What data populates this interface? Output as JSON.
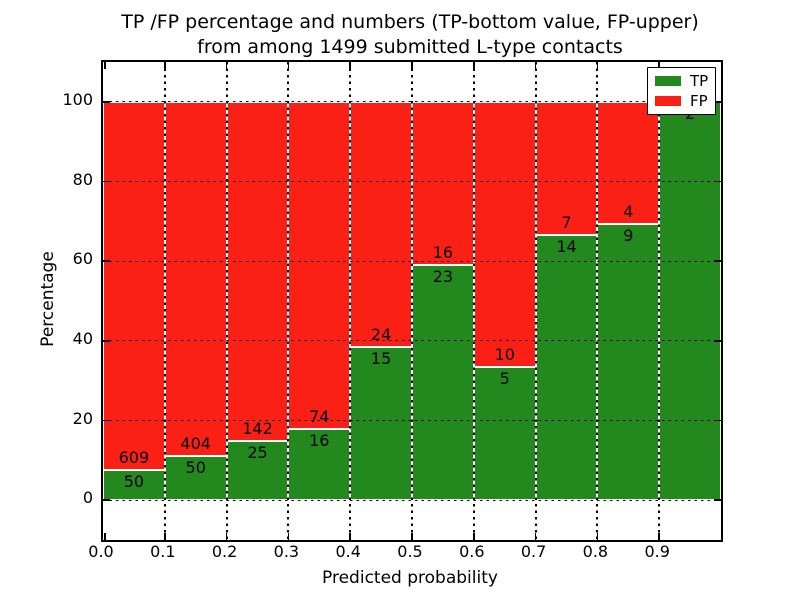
{
  "chart_data": {
    "type": "bar",
    "stacked": true,
    "title_line1": "TP /FP percentage and numbers (TP-bottom value, FP-upper)",
    "title_line2": "from among 1499 submitted L-type contacts",
    "xlabel": "Predicted probability",
    "ylabel": "Percentage",
    "total_contacts": 1499,
    "xlim": [
      0.0,
      1.0
    ],
    "ylim": [
      -10,
      110
    ],
    "bar_width": 0.1,
    "grid": true,
    "x_ticks": [
      0.0,
      0.1,
      0.2,
      0.3,
      0.4,
      0.5,
      0.6,
      0.7,
      0.8,
      0.9
    ],
    "x_tick_labels": [
      "0.0",
      "0.1",
      "0.2",
      "0.3",
      "0.4",
      "0.5",
      "0.6",
      "0.7",
      "0.8",
      "0.9"
    ],
    "y_ticks": [
      0,
      20,
      40,
      60,
      80,
      100
    ],
    "y_tick_labels": [
      "0",
      "20",
      "40",
      "60",
      "80",
      "100"
    ],
    "legend": {
      "position": "upper-right",
      "entries": [
        {
          "label": "TP",
          "color": "#23891e"
        },
        {
          "label": "FP",
          "color": "#fb2015"
        }
      ]
    },
    "bins": [
      {
        "x_start": 0.0,
        "x_end": 0.1,
        "tp": 50,
        "fp": 609,
        "tp_percent": 7.59
      },
      {
        "x_start": 0.1,
        "x_end": 0.2,
        "tp": 50,
        "fp": 404,
        "tp_percent": 11.01
      },
      {
        "x_start": 0.2,
        "x_end": 0.3,
        "tp": 25,
        "fp": 142,
        "tp_percent": 14.97
      },
      {
        "x_start": 0.3,
        "x_end": 0.4,
        "tp": 16,
        "fp": 74,
        "tp_percent": 17.78
      },
      {
        "x_start": 0.4,
        "x_end": 0.5,
        "tp": 15,
        "fp": 24,
        "tp_percent": 38.46
      },
      {
        "x_start": 0.5,
        "x_end": 0.6,
        "tp": 23,
        "fp": 16,
        "tp_percent": 58.97
      },
      {
        "x_start": 0.6,
        "x_end": 0.7,
        "tp": 5,
        "fp": 10,
        "tp_percent": 33.33
      },
      {
        "x_start": 0.7,
        "x_end": 0.8,
        "tp": 14,
        "fp": 7,
        "tp_percent": 66.67
      },
      {
        "x_start": 0.8,
        "x_end": 0.9,
        "tp": 9,
        "fp": 4,
        "tp_percent": 69.23
      },
      {
        "x_start": 0.9,
        "x_end": 1.0,
        "tp": 2,
        "fp": 0,
        "tp_percent": 100.0
      }
    ]
  },
  "colors": {
    "tp": "#23891e",
    "fp": "#fb2015",
    "grid": "#000000",
    "background": "#ffffff"
  }
}
